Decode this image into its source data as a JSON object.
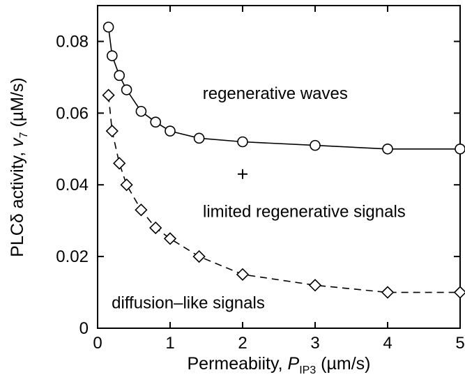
{
  "chart_data": {
    "type": "line",
    "xlabel": {
      "main": "Permeabiity, ",
      "var": "P",
      "sub": "IP3",
      "unit": " (µm/s)"
    },
    "ylabel": {
      "main": "PLCδ activity, ",
      "var": "v",
      "sub": "7",
      "unit": " (µM/s)"
    },
    "xlim": [
      0,
      5
    ],
    "ylim": [
      0,
      0.09
    ],
    "grid": false,
    "x_ticks": [
      0,
      1,
      2,
      3,
      4,
      5
    ],
    "x_tick_labels": [
      "0",
      "1",
      "2",
      "3",
      "4",
      "5"
    ],
    "y_ticks": [
      0,
      0.02,
      0.04,
      0.06,
      0.08
    ],
    "y_tick_labels": [
      "0",
      "0.02",
      "0.04",
      "0.06",
      "0.08"
    ],
    "series": [
      {
        "marker": "circle",
        "line": "solid",
        "x": [
          0.15,
          0.2,
          0.3,
          0.4,
          0.6,
          0.8,
          1.0,
          1.4,
          2.0,
          3.0,
          4.0,
          5.0
        ],
        "y": [
          0.084,
          0.076,
          0.0705,
          0.0665,
          0.0605,
          0.0575,
          0.055,
          0.053,
          0.052,
          0.051,
          0.05,
          0.05
        ]
      },
      {
        "marker": "diamond",
        "line": "dashed",
        "x": [
          0.15,
          0.2,
          0.3,
          0.4,
          0.6,
          0.8,
          1.0,
          1.4,
          2.0,
          3.0,
          4.0,
          5.0
        ],
        "y": [
          0.065,
          0.055,
          0.046,
          0.04,
          0.033,
          0.028,
          0.025,
          0.02,
          0.015,
          0.012,
          0.01,
          0.01
        ]
      }
    ],
    "points": [
      {
        "marker": "plus",
        "x": 2.0,
        "y": 0.043
      }
    ],
    "annotations": [
      {
        "text": "regenerative waves",
        "x": 2.45,
        "y": 0.064
      },
      {
        "text": "limited regenerative signals",
        "x": 2.85,
        "y": 0.031
      },
      {
        "text": "diffusion–like signals",
        "x": 1.25,
        "y": 0.0055
      }
    ]
  }
}
